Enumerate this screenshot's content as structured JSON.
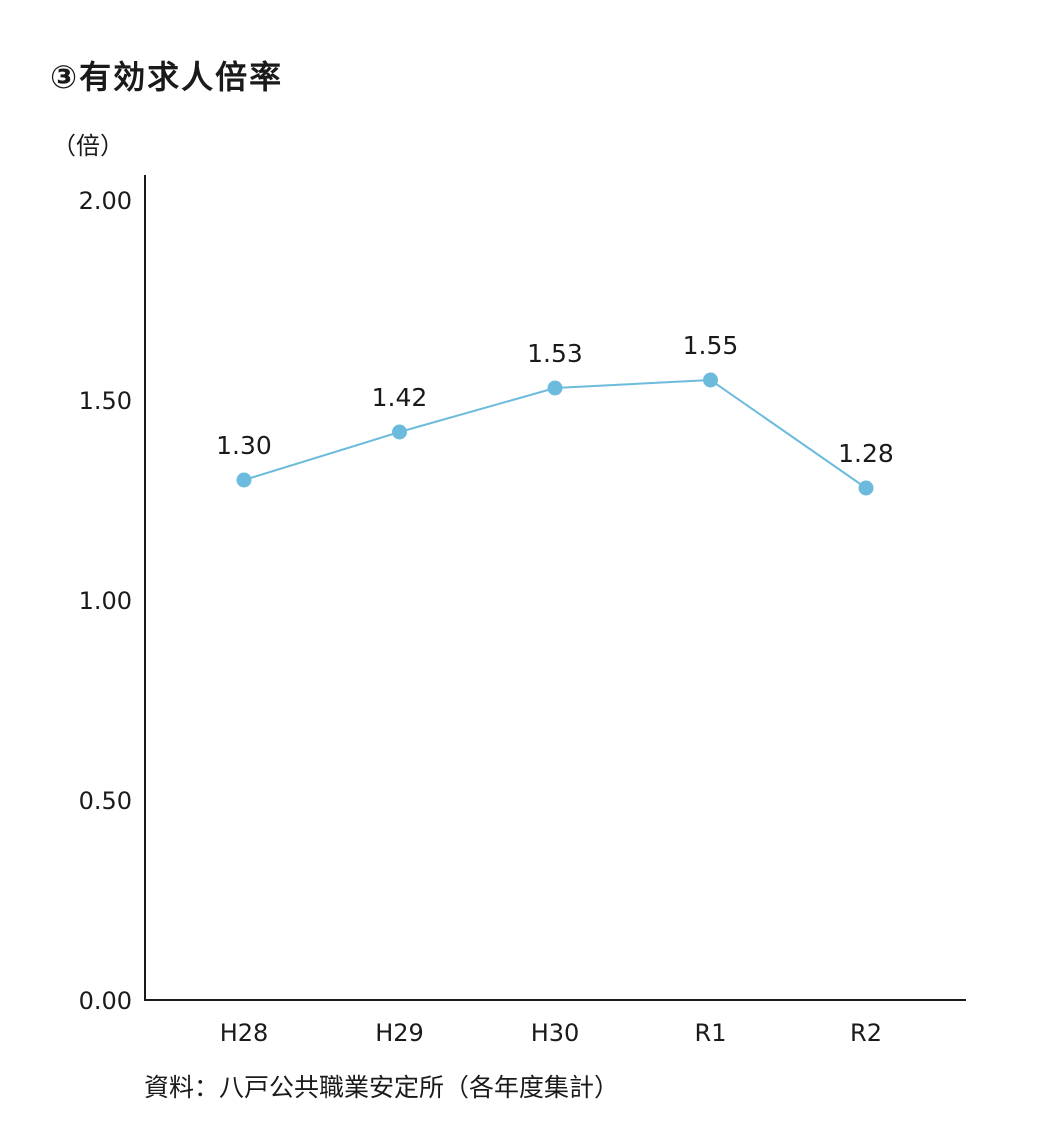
{
  "chart_data": {
    "type": "line",
    "title": "③有効求人倍率",
    "unit_label": "（倍）",
    "categories": [
      "H28",
      "H29",
      "H30",
      "R1",
      "R2"
    ],
    "series": [
      {
        "values": [
          1.3,
          1.42,
          1.53,
          1.55,
          1.28
        ]
      }
    ],
    "data_labels": [
      "1.30",
      "1.42",
      "1.53",
      "1.55",
      "1.28"
    ],
    "y_ticks": [
      "0.00",
      "0.50",
      "1.00",
      "1.50",
      "2.00"
    ],
    "ylim": [
      0,
      2.0
    ],
    "grid": false,
    "color": "#6cbbdc",
    "source": "資料：八戸公共職業安定所（各年度集計）"
  }
}
